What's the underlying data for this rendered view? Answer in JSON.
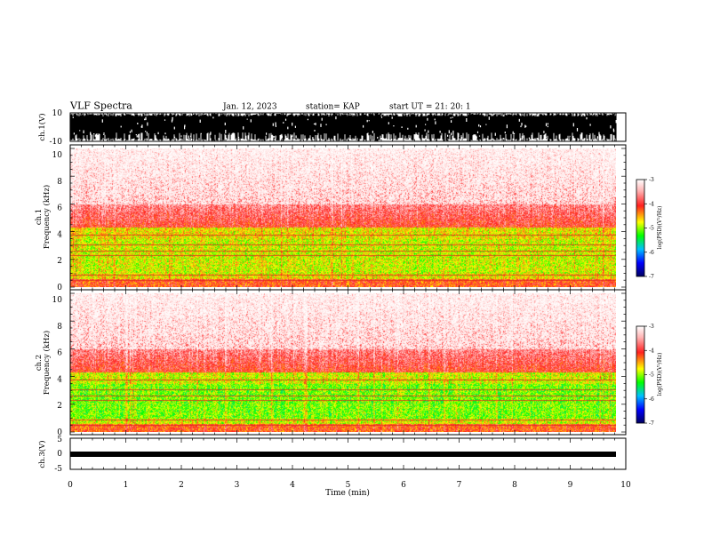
{
  "header": {
    "title": "VLF Spectra",
    "date": "Jan. 12, 2023",
    "station": "station= KAP",
    "start": "start  UT  =   21: 20: 1"
  },
  "colorbar": {
    "label": "log(PSD)(V²/Hz)",
    "ticks": [
      "-3",
      "-4",
      "-5",
      "-6",
      "-7"
    ],
    "colors": [
      "#ffffff",
      "#ffb0b0",
      "#ff2020",
      "#ffff00",
      "#00ff00",
      "#00c0ff",
      "#0000ff",
      "#000060"
    ]
  },
  "chart_data": [
    {
      "type": "line",
      "name": "ch1-waveform",
      "ylabel": "ch.1(V)",
      "ylim": [
        -10,
        10
      ],
      "yticks": [
        "10",
        "-10"
      ],
      "xlim": [
        0,
        10
      ],
      "description_level": "saturated noisy waveform spanning full range"
    },
    {
      "type": "heatmap",
      "name": "ch1-spectrogram",
      "ylabel_top": "ch.1",
      "ylabel": "Frequency (kHz)",
      "ylim": [
        0,
        10
      ],
      "yticks": [
        "0",
        "2",
        "4",
        "6",
        "8",
        "10"
      ],
      "xlim": [
        0,
        9.85
      ],
      "zlim": [
        -7,
        -3
      ]
    },
    {
      "type": "heatmap",
      "name": "ch2-spectrogram",
      "ylabel_top": "ch.2",
      "ylabel": "Frequency (kHz)",
      "ylim": [
        0,
        10
      ],
      "yticks": [
        "0",
        "2",
        "4",
        "6",
        "8",
        "10"
      ],
      "xlim": [
        0,
        9.85
      ],
      "zlim": [
        -7,
        -3
      ]
    },
    {
      "type": "line",
      "name": "ch3-waveform",
      "ylabel": "ch.3(V)",
      "ylim": [
        -5,
        5
      ],
      "yticks": [
        "5",
        "0",
        "-5"
      ],
      "xlim": [
        0,
        10
      ],
      "xlabel": "Time (min)",
      "xticks": [
        "0",
        "1",
        "2",
        "3",
        "4",
        "5",
        "6",
        "7",
        "8",
        "9",
        "10"
      ]
    }
  ]
}
